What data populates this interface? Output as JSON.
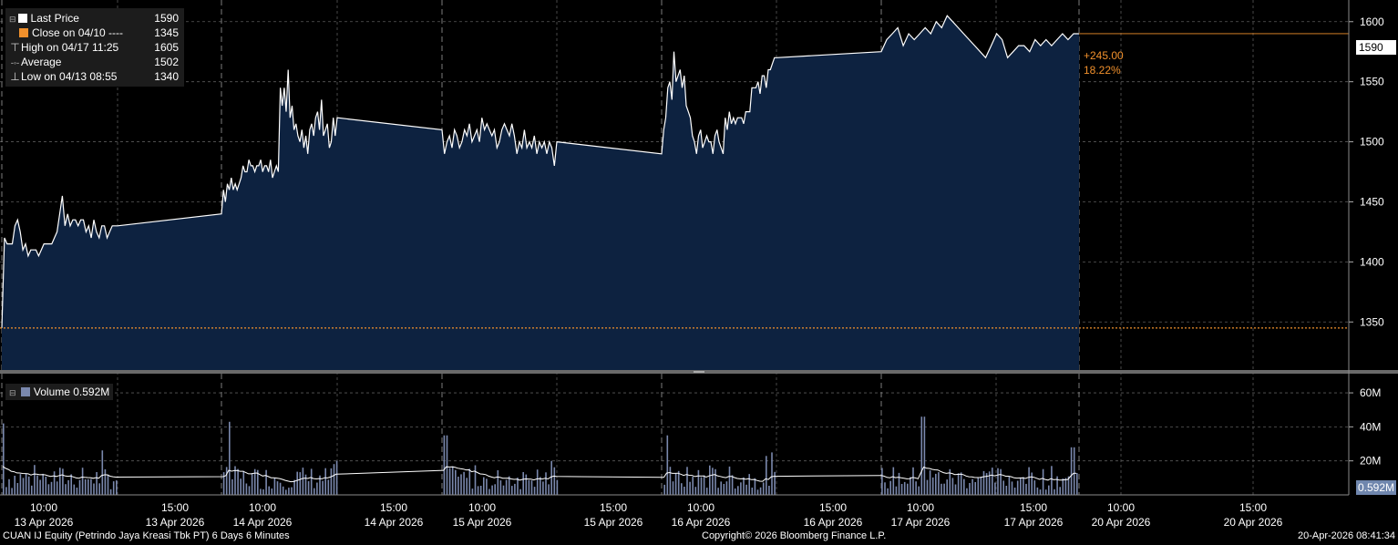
{
  "legend": {
    "last_label": "Last Price",
    "last_value": "1590",
    "close_label": "Close on 04/10 ----",
    "close_value": "1345",
    "high_label": "High on 04/17 11:25",
    "high_value": "1605",
    "avg_label": "Average",
    "avg_value": "1502",
    "low_label": "Low on 04/13 08:55",
    "low_value": "1340"
  },
  "volume_legend": "Volume 0.592M",
  "price_tag": "1590",
  "volume_tag": "0.592M",
  "change_abs": "+245.00",
  "change_pct": "18.22%",
  "footer": {
    "left": "CUAN IJ Equity (Petrindo Jaya Kreasi Tbk PT) 6 Days 6 Minutes",
    "center": "Copyright© 2026 Bloomberg Finance L.P.",
    "right": "20-Apr-2026 08:41:34"
  },
  "colors": {
    "price_line": "#ffffff",
    "area_fill": "#0d2240",
    "close_line": "#f0902c",
    "volume_bar": "#7a88ad",
    "grid": "#5a5a5a"
  },
  "chart_data": [
    {
      "type": "area",
      "title": "Last Price",
      "ylim": [
        1310,
        1615
      ],
      "y_ticks": [
        "1350",
        "1400",
        "1450",
        "1500",
        "1550",
        "1600"
      ],
      "grid": true,
      "close_reference": 1345,
      "x_labels": [
        {
          "time": "10:00",
          "date": "13 Apr 2026"
        },
        {
          "time": "15:00",
          "date": "13 Apr 2026"
        },
        {
          "time": "10:00",
          "date": "14 Apr 2026"
        },
        {
          "time": "15:00",
          "date": "14 Apr 2026"
        },
        {
          "time": "10:00",
          "date": "15 Apr 2026"
        },
        {
          "time": "15:00",
          "date": "15 Apr 2026"
        },
        {
          "time": "10:00",
          "date": "16 Apr 2026"
        },
        {
          "time": "15:00",
          "date": "16 Apr 2026"
        },
        {
          "time": "10:00",
          "date": "17 Apr 2026"
        },
        {
          "time": "15:00",
          "date": "17 Apr 2026"
        },
        {
          "time": "10:00",
          "date": "20 Apr 2026"
        },
        {
          "time": "15:00",
          "date": "20 Apr 2026"
        }
      ],
      "sessions": [
        {
          "day": "13 Apr 2026",
          "values": [
            1345,
            1420,
            1415,
            1415,
            1415,
            1430,
            1435,
            1425,
            1410,
            1415,
            1405,
            1410,
            1410,
            1410,
            1405,
            1410,
            1415,
            1415,
            1415,
            1415,
            1420,
            1425,
            1440,
            1455,
            1430,
            1440,
            1430,
            1435,
            1435,
            1430,
            1435,
            1435,
            1425,
            1430,
            1420,
            1435,
            1425,
            1420,
            1430,
            1430,
            1420,
            1425,
            1430,
            1430,
            1430
          ]
        },
        {
          "day": "14 Apr 2026",
          "values": [
            1440,
            1460,
            1450,
            1465,
            1460,
            1470,
            1460,
            1465,
            1460,
            1465,
            1470,
            1480,
            1475,
            1475,
            1485,
            1480,
            1480,
            1475,
            1480,
            1480,
            1485,
            1475,
            1480,
            1480,
            1475,
            1485,
            1470,
            1475,
            1480,
            1475,
            1545,
            1530,
            1545,
            1525,
            1560,
            1520,
            1530,
            1510,
            1515,
            1505,
            1500,
            1510,
            1495,
            1505,
            1490,
            1510,
            1515,
            1505,
            1520,
            1525,
            1510,
            1535,
            1505,
            1510,
            1515,
            1495,
            1500,
            1520,
            1505,
            1520
          ]
        },
        {
          "day": "15 Apr 2026",
          "values": [
            1510,
            1490,
            1500,
            1505,
            1495,
            1510,
            1505,
            1495,
            1500,
            1510,
            1505,
            1515,
            1500,
            1505,
            1510,
            1500,
            1520,
            1510,
            1515,
            1510,
            1505,
            1510,
            1495,
            1500,
            1510,
            1515,
            1510,
            1505,
            1515,
            1505,
            1490,
            1500,
            1495,
            1510,
            1495,
            1500,
            1495,
            1505,
            1490,
            1500,
            1495,
            1500,
            1490,
            1500,
            1495,
            1480,
            1500
          ]
        },
        {
          "day": "16 Apr 2026",
          "values": [
            1490,
            1510,
            1520,
            1545,
            1550,
            1535,
            1575,
            1550,
            1555,
            1560,
            1545,
            1555,
            1530,
            1525,
            1520,
            1505,
            1500,
            1490,
            1505,
            1510,
            1495,
            1500,
            1505,
            1500,
            1500,
            1490,
            1505,
            1510,
            1500,
            1495,
            1490,
            1520,
            1510,
            1525,
            1515,
            1520,
            1515,
            1520,
            1520,
            1520,
            1515,
            1525,
            1525,
            1525,
            1545,
            1545,
            1545,
            1550,
            1540,
            1555,
            1555,
            1545,
            1560,
            1560,
            1565,
            1570,
            1570
          ]
        },
        {
          "day": "17 Apr 2026",
          "values": [
            1575,
            1585,
            1590,
            1595,
            1580,
            1590,
            1585,
            1590,
            1595,
            1590,
            1600,
            1595,
            1605,
            1600,
            1595,
            1590,
            1585,
            1580,
            1575,
            1570,
            1580,
            1590,
            1585,
            1570,
            1575,
            1580,
            1580,
            1575,
            1585,
            1580,
            1585,
            1580,
            1585,
            1590,
            1585,
            1590,
            1590
          ]
        }
      ]
    },
    {
      "type": "bar",
      "title": "Volume",
      "ylim": [
        0,
        67
      ],
      "y_ticks": [
        "20M",
        "40M",
        "60M"
      ],
      "average_series": true
    }
  ]
}
